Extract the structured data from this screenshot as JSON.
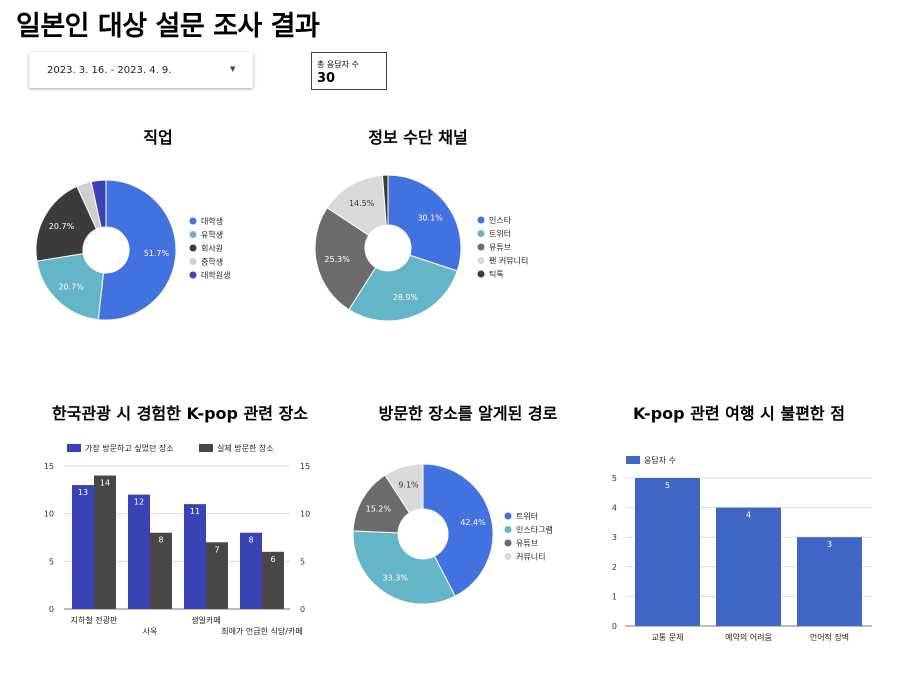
{
  "page": {
    "title": "일본인 대상 설문 조사 결과"
  },
  "date_filter": {
    "value": "2023. 3. 16. - 2023. 4. 9.",
    "icon": "caret-down-icon"
  },
  "scorecard": {
    "label": "총 응답자 수",
    "value": "30"
  },
  "colors": {
    "blue": "#4272e0",
    "teal": "#65b5c8",
    "darkgray": "#3b3b3b",
    "gray": "#cfcfcf",
    "navy": "#3a43b4",
    "midgray": "#6b6b6b",
    "darkgray2": "#474747",
    "lightgray": "#d9d9d9",
    "bar": "#3f66c4"
  },
  "chart_data": [
    {
      "id": "job",
      "type": "pie",
      "title": "직업",
      "labels": [
        "대학생",
        "유학생",
        "회사원",
        "중학생",
        "대학원생"
      ],
      "values": [
        51.7,
        20.7,
        20.7,
        3.4,
        3.4
      ],
      "value_labels": [
        "51.7%",
        "20.7%",
        "20.7%",
        "",
        ""
      ],
      "colors": [
        "#4272e0",
        "#65b5c8",
        "#3b3b3b",
        "#cfcfcf",
        "#3a43b4"
      ],
      "legend": "right"
    },
    {
      "id": "channel",
      "type": "pie",
      "title": "정보 수단 채널",
      "labels": [
        "인스타",
        "트위터",
        "유튜브",
        "팬 커뮤니티",
        "틱톡"
      ],
      "values": [
        30.1,
        28.9,
        25.3,
        14.5,
        1.2
      ],
      "value_labels": [
        "30.1%",
        "28.9%",
        "25.3%",
        "14.5%",
        ""
      ],
      "colors": [
        "#4272e0",
        "#65b5c8",
        "#6b6b6b",
        "#d9d9d9",
        "#3b3b3b"
      ],
      "legend": "right"
    },
    {
      "id": "places",
      "type": "bar",
      "title": "한국관광 시 경험한 K-pop 관련 장소",
      "categories": [
        "지하철 전광판",
        "사옥",
        "생일카페",
        "최애가 언급한 식당/카페"
      ],
      "series": [
        {
          "name": "가장 방문하고 싶었던 장소",
          "values": [
            13,
            12,
            11,
            8
          ],
          "color": "#3a43b4"
        },
        {
          "name": "실제 방문한 장소",
          "values": [
            14,
            8,
            7,
            6
          ],
          "color": "#474747"
        }
      ],
      "yticks": [
        "0",
        "5",
        "10",
        "15"
      ],
      "ylim": [
        0,
        15
      ],
      "legend": "top"
    },
    {
      "id": "route",
      "type": "pie",
      "title": "방문한 장소를 알게된 경로",
      "labels": [
        "트위터",
        "인스타그램",
        "유튜브",
        "커뮤니티"
      ],
      "values": [
        42.4,
        33.3,
        15.2,
        9.1
      ],
      "value_labels": [
        "42.4%",
        "33.3%",
        "15.2%",
        "9.1%"
      ],
      "colors": [
        "#4272e0",
        "#65b5c8",
        "#6b6b6b",
        "#d9d9d9"
      ],
      "legend": "right"
    },
    {
      "id": "inconvenience",
      "type": "bar",
      "title": "K-pop 관련 여행 시 불편한 점",
      "categories": [
        "교통 문제",
        "예약의 어려움",
        "언어적 장벽"
      ],
      "series": [
        {
          "name": "응답자 수",
          "values": [
            5,
            4,
            3
          ],
          "color": "#3f66c4"
        }
      ],
      "yticks": [
        "0",
        "1",
        "2",
        "3",
        "4",
        "5"
      ],
      "ylim": [
        0,
        5
      ],
      "legend": "top-left"
    }
  ]
}
